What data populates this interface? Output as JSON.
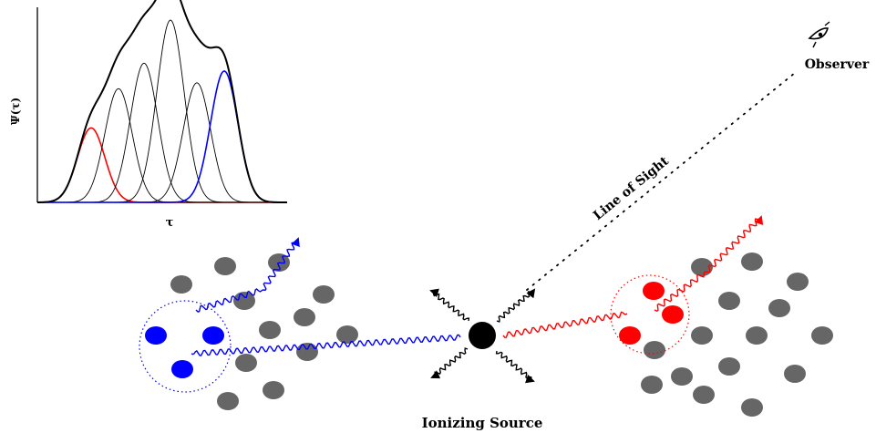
{
  "inset_plot": {
    "ylabel": "Ψ(τ)",
    "xlabel": "τ",
    "curves": [
      {
        "mu": 100,
        "amp": 0.38,
        "color": "#ff0000",
        "width": 1.6
      },
      {
        "mu": 130,
        "amp": 0.58,
        "color": "#000000",
        "width": 0.9
      },
      {
        "mu": 158,
        "amp": 0.71,
        "color": "#000000",
        "width": 0.9
      },
      {
        "mu": 187,
        "amp": 0.93,
        "color": "#000000",
        "width": 0.9
      },
      {
        "mu": 216,
        "amp": 0.61,
        "color": "#000000",
        "width": 0.9
      },
      {
        "mu": 246,
        "amp": 0.67,
        "color": "#0000ff",
        "width": 1.6
      }
    ]
  },
  "labels": {
    "observer": "Observer",
    "line_of_sight": "Line of Sight",
    "ionizing_source": "Ionizing Source"
  },
  "colors": {
    "near_side": "#0000ff",
    "far_side": "#ff0000",
    "cloud": "#666666",
    "source": "#000000"
  },
  "icons": {
    "observer": "eye-icon"
  }
}
